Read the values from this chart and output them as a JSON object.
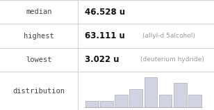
{
  "rows": [
    {
      "label": "median",
      "value": "46.528 u",
      "note": ""
    },
    {
      "label": "highest",
      "value": "63.111 u",
      "note": "(allyl-d 5alcohol)"
    },
    {
      "label": "lowest",
      "value": "3.022 u",
      "note": "(deuterium hydride)"
    },
    {
      "label": "distribution",
      "value": "",
      "note": ""
    }
  ],
  "hist_bars": [
    1,
    1,
    2,
    3,
    5,
    2,
    4,
    2
  ],
  "bar_color": "#d0d3e0",
  "bar_edge_color": "#aaaabb",
  "bg_color": "#ffffff",
  "grid_line_color": "#cccccc",
  "label_color": "#444444",
  "value_color": "#111111",
  "note_color": "#999999",
  "col_split": 0.365,
  "label_fontsize": 7.5,
  "value_fontsize": 8.5,
  "note_fontsize": 6.5
}
